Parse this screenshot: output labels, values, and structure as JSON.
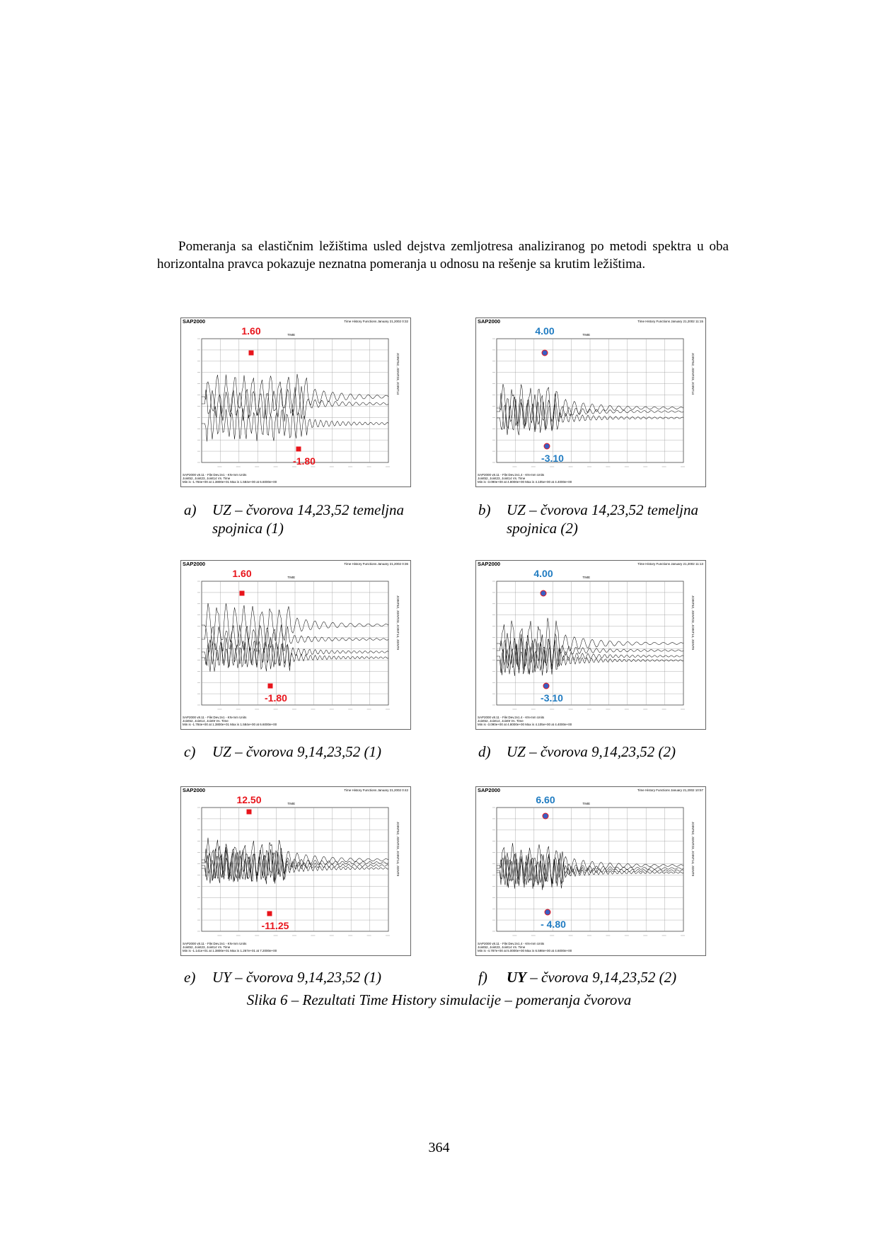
{
  "paragraph": "Pomeranja sa elastičnim ležištima usled dejstva zemljotresa analiziranog po metodi spektra u oba horizontalna pravca pokazuje neznatna pomeranja u odnosu na rešenje sa krutim ležištima.",
  "figure_title": "Slika 6 – Rezultati Time History simulacije – pomeranja čvorova",
  "page_number": "364",
  "colors": {
    "red_annotation": "#e8141b",
    "blue_annotation": "#1f7bc1",
    "marker_blue": "#3a5fc4"
  },
  "panels": [
    {
      "app": "SAP2000",
      "header_right": "Time History Functions  January 21,2002  0:32",
      "axis_title": "TIME",
      "legend": "JOINT52, JOINT23, JOINT14",
      "footer": [
        "SAP2000 v8.11 - File:Dev.2v1 - KN-mm Units",
        "Joint52, Joint23, Joint14 Vs. Time",
        "Min is -1.784e+00 at 1.3800e+01  Max is 1.584e+00 at 6.6000e+00"
      ],
      "max_label": "1.60",
      "min_label": "-1.80",
      "color": "red",
      "caption_letter": "a)",
      "caption": "UZ – čvorova 14,23,52 temeljna spojnica (1)"
    },
    {
      "app": "SAP2000",
      "header_right": "Time History Functions  January 21,2002  11:15",
      "axis_title": "TIME",
      "legend": "JOINT52, JOINT23, JOINT14",
      "footer": [
        "SAP2000 v8.11 - File:Dev.2v1.4 - KN-mm Units",
        "Joint52, Joint23, Joint14 Vs. Time",
        "Min is -3.090e+00 at 4.8000e+00  Max is 4.105e+00 at 4.4000e+00"
      ],
      "max_label": "4.00",
      "min_label": "-3.10",
      "color": "blue",
      "caption_letter": "b)",
      "caption": "UZ – čvorova 14,23,52  temeljna spojnica (2)"
    },
    {
      "app": "SAP2000",
      "header_right": "Time History Functions  January 21,2002  0:36",
      "axis_title": "TIME",
      "legend": "JOINT52, JOINT23, JOINT14, JOINT9",
      "footer": [
        "SAP2000 v8.11 - File:Dev.2v1 - KN-mm Units",
        "Joint52, Joint14, Joint9 Vs. Time",
        "Min is -1.784e+00 at 1.3800e+01  Max is 1.584e+00 at 6.6000e+00"
      ],
      "max_label": "1.60",
      "min_label": "-1.80",
      "color": "red",
      "caption_letter": "c)",
      "caption": "UZ – čvorova 9,14,23,52  (1)"
    },
    {
      "app": "SAP2000",
      "header_right": "Time History Functions  January 21,2002  11:13",
      "axis_title": "TIME",
      "legend": "JOINT52, JOINT23, JOINT14, JOINT9",
      "footer": [
        "SAP2000 v8.11 - File:Dev.2v1.4 - KN-mm Units",
        "Joint52, Joint14, Joint9 Vs. Time",
        "Min is -3.090e+00 at 4.8000e+00  Max is 4.105e+00 at 4.4000e+00"
      ],
      "max_label": "4.00",
      "min_label": "-3.10",
      "color": "blue",
      "caption_letter": "d)",
      "caption": "UZ – čvorova 9,14,23,52  (2)"
    },
    {
      "app": "SAP2000",
      "header_right": "Time History Functions  January 21,2002  0:42",
      "axis_title": "TIME",
      "legend": "JOINT52, JOINT23, JOINT14, JOINT9",
      "footer": [
        "SAP2000 v8.11 - File:Dev.2v1 - KN-mm Units",
        "Joint52, Joint23, Joint14 Vs. Time",
        "Min is -1.141e+01 at 1.3800e+01  Max is 1.267e+01 at 7.2000e+00"
      ],
      "max_label": "12.50",
      "min_label": "-11.25",
      "color": "red",
      "caption_letter": "e)",
      "caption": "UY – čvorova 9,14,23,52 (1)"
    },
    {
      "app": "SAP2000",
      "header_right": "Time History Functions  January 21,2002  10:57",
      "axis_title": "TIME",
      "legend": "JOINT52, JOINT23, JOINT14, JOINT9",
      "footer": [
        "SAP2000 v8.11 - File:Dev.2v1.4 - KN-mm Units",
        "Joint52, Joint23, Joint14 Vs. Time",
        "Min is -4.787e+00 at 5.0000e+00  Max is 6.598e+00 at 4.6000e+00"
      ],
      "max_label": "6.60",
      "min_label": "- 4.80",
      "color": "blue",
      "caption_letter": "f)",
      "caption": "UY – čvorova 9,14,23,52 (2)"
    }
  ]
}
